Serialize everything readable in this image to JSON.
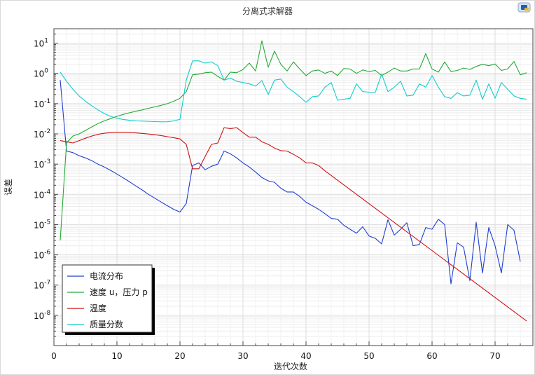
{
  "title": "分离式求解器",
  "chart_data": {
    "type": "line",
    "title": "分离式求解器",
    "xlabel": "迭代次数",
    "ylabel": "误差",
    "xlim": [
      0,
      76
    ],
    "ylim": [
      1e-09,
      30
    ],
    "yscale": "log",
    "xticks": [
      0,
      10,
      20,
      30,
      40,
      50,
      60,
      70
    ],
    "yticks": [
      {
        "exp": 1,
        "label": "10",
        "sup": "1"
      },
      {
        "exp": 0,
        "label": "10",
        "sup": "0"
      },
      {
        "exp": -1,
        "label": "10",
        "sup": "-1"
      },
      {
        "exp": -2,
        "label": "10",
        "sup": "-2"
      },
      {
        "exp": -3,
        "label": "10",
        "sup": "-3"
      },
      {
        "exp": -4,
        "label": "10",
        "sup": "-4"
      },
      {
        "exp": -5,
        "label": "10",
        "sup": "-5"
      },
      {
        "exp": -6,
        "label": "10",
        "sup": "-6"
      },
      {
        "exp": -7,
        "label": "10",
        "sup": "-7"
      },
      {
        "exp": -8,
        "label": "10",
        "sup": "-8"
      }
    ],
    "grid": true,
    "legend_position": "bottom-left",
    "series": [
      {
        "name": "电流分布",
        "color": "#1f3fcf",
        "x": [
          1,
          2,
          3,
          4,
          5,
          6,
          7,
          8,
          9,
          10,
          11,
          12,
          13,
          14,
          15,
          16,
          17,
          18,
          19,
          20,
          21,
          22,
          23,
          24,
          25,
          26,
          27,
          28,
          29,
          30,
          31,
          32,
          33,
          34,
          35,
          36,
          37,
          38,
          39,
          40,
          41,
          42,
          43,
          44,
          45,
          46,
          47,
          48,
          49,
          50,
          51,
          52,
          53,
          54,
          55,
          56,
          57,
          58,
          59,
          60,
          61,
          62,
          63,
          64,
          65,
          66,
          67,
          68,
          69,
          70,
          71,
          72,
          73,
          74,
          75
        ],
        "values": [
          0.6,
          0.0027,
          0.0024,
          0.0019,
          0.0016,
          0.0013,
          0.001,
          0.0008,
          0.00062,
          0.00047,
          0.00035,
          0.00026,
          0.00019,
          0.00014,
          0.0001,
          7.5e-05,
          5.6e-05,
          4.2e-05,
          3.2e-05,
          2.6e-05,
          5e-05,
          0.0009,
          0.0011,
          0.00065,
          0.00085,
          0.001,
          0.0027,
          0.0022,
          0.0016,
          0.0011,
          0.0008,
          0.00055,
          0.00036,
          0.00028,
          0.00025,
          0.00016,
          0.00012,
          0.00012,
          8.5e-05,
          5.5e-05,
          4.2e-05,
          3.2e-05,
          2.3e-05,
          1.6e-05,
          1.5e-05,
          9.5e-06,
          7e-06,
          5.2e-06,
          8.5e-06,
          4.2e-06,
          3.5e-06,
          2.3e-06,
          1.45e-05,
          4.5e-06,
          7e-06,
          1.15e-05,
          2e-06,
          2.2e-06,
          8e-06,
          7e-06,
          1.5e-05,
          1e-05,
          1.1e-07,
          2.5e-06,
          1.8e-06,
          1.4e-07,
          1.2e-05,
          2.5e-07,
          8e-06,
          2e-06,
          2.5e-07,
          1e-05,
          6.5e-06,
          6e-07,
          null
        ]
      },
      {
        "name": "速度 u，压力 p",
        "color": "#22aa33",
        "x": [
          1,
          2,
          3,
          4,
          5,
          6,
          7,
          8,
          9,
          10,
          11,
          12,
          13,
          14,
          15,
          16,
          17,
          18,
          19,
          20,
          21,
          22,
          23,
          24,
          25,
          26,
          27,
          28,
          29,
          30,
          31,
          32,
          33,
          34,
          35,
          36,
          37,
          38,
          39,
          40,
          41,
          42,
          43,
          44,
          45,
          46,
          47,
          48,
          49,
          50,
          51,
          52,
          53,
          54,
          55,
          56,
          57,
          58,
          59,
          60,
          61,
          62,
          63,
          64,
          65,
          66,
          67,
          68,
          69,
          70,
          71,
          72,
          73,
          74,
          75
        ],
        "values": [
          3e-06,
          0.005,
          0.0085,
          0.01,
          0.013,
          0.017,
          0.022,
          0.027,
          0.032,
          0.038,
          0.044,
          0.05,
          0.056,
          0.062,
          0.07,
          0.078,
          0.088,
          0.1,
          0.12,
          0.15,
          0.25,
          0.9,
          0.95,
          1.05,
          1.1,
          0.8,
          0.6,
          1.1,
          1.05,
          1.35,
          2.2,
          1.2,
          12,
          1.6,
          5.5,
          2,
          1.2,
          2.4,
          1.4,
          0.85,
          1.2,
          1.3,
          1,
          1.2,
          0.85,
          1.45,
          1.4,
          1,
          1.3,
          1.15,
          1.25,
          0.85,
          1.1,
          1.5,
          1.2,
          1.2,
          1.4,
          1.4,
          4.5,
          1.4,
          1.1,
          2.4,
          1.15,
          1.25,
          1.5,
          1.35,
          1.7,
          2,
          1.8,
          2.05,
          1.25,
          1.4,
          2.5,
          0.9,
          1.05
        ]
      },
      {
        "name": "温度",
        "color": "#cc1111",
        "x": [
          1,
          2,
          3,
          4,
          5,
          6,
          7,
          8,
          9,
          10,
          11,
          12,
          13,
          14,
          15,
          16,
          17,
          18,
          19,
          20,
          21,
          22,
          23,
          24,
          25,
          26,
          27,
          28,
          29,
          30,
          31,
          32,
          33,
          34,
          35,
          36,
          37,
          38,
          39,
          40,
          41,
          42,
          43,
          75
        ],
        "values": [
          0.006,
          0.0055,
          0.005,
          0.006,
          0.0072,
          0.0085,
          0.0097,
          0.0105,
          0.011,
          0.0113,
          0.0113,
          0.0111,
          0.0108,
          0.0104,
          0.0099,
          0.0094,
          0.0088,
          0.0081,
          0.0075,
          0.0068,
          0.0045,
          0.0007,
          0.0007,
          0.0018,
          0.0045,
          0.005,
          0.016,
          0.015,
          0.016,
          0.011,
          0.0078,
          0.0078,
          0.0055,
          0.0045,
          0.0034,
          0.0028,
          0.0027,
          0.0021,
          0.0016,
          0.0011,
          0.0011,
          0.0009,
          0.0006,
          6.5e-09
        ]
      },
      {
        "name": "质量分数",
        "color": "#11cccc",
        "x": [
          1,
          2,
          3,
          4,
          5,
          6,
          7,
          8,
          9,
          10,
          11,
          12,
          13,
          14,
          15,
          16,
          17,
          18,
          19,
          20,
          21,
          22,
          23,
          24,
          25,
          26,
          27,
          28,
          29,
          30,
          31,
          32,
          33,
          34,
          35,
          36,
          37,
          38,
          39,
          40,
          41,
          42,
          43,
          44,
          45,
          46,
          47,
          48,
          49,
          50,
          51,
          52,
          53,
          54,
          55,
          56,
          57,
          58,
          59,
          60,
          61,
          62,
          63,
          64,
          65,
          66,
          67,
          68,
          69,
          70,
          71,
          72,
          73,
          74,
          75
        ],
        "values": [
          1.1,
          0.55,
          0.3,
          0.18,
          0.12,
          0.085,
          0.062,
          0.047,
          0.038,
          0.033,
          0.03,
          0.028,
          0.027,
          0.0265,
          0.026,
          0.0255,
          0.025,
          0.0252,
          0.027,
          0.03,
          0.6,
          2.6,
          2.6,
          2.2,
          2.4,
          1.8,
          0.6,
          0.7,
          0.55,
          0.5,
          0.45,
          0.38,
          0.58,
          0.2,
          0.6,
          0.65,
          0.35,
          0.25,
          0.17,
          0.11,
          0.17,
          0.18,
          0.35,
          0.5,
          0.13,
          0.14,
          0.15,
          0.45,
          0.25,
          0.24,
          0.24,
          0.95,
          0.25,
          0.35,
          0.55,
          0.18,
          0.19,
          0.45,
          0.35,
          0.85,
          0.35,
          0.17,
          0.15,
          0.23,
          0.18,
          0.19,
          0.6,
          0.14,
          0.45,
          0.15,
          0.5,
          0.3,
          0.18,
          0.15,
          0.14
        ]
      }
    ]
  }
}
